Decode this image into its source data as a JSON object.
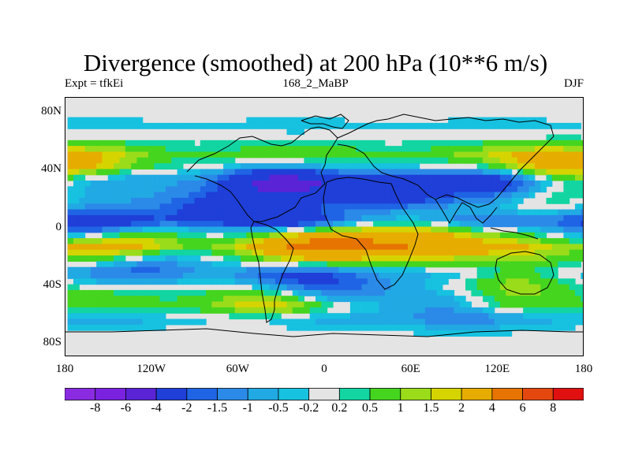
{
  "chart_data": {
    "type": "heatmap",
    "title": "Divergence (smoothed) at 200 hPa (10**6 m/s)",
    "left_label": "Expt = tfkEi",
    "center_label": "168_2_MaBP",
    "right_label": "DJF",
    "xlim": [
      -180,
      180
    ],
    "ylim": [
      -90,
      90
    ],
    "x_ticks": [
      {
        "value": -180,
        "label": "180"
      },
      {
        "value": -120,
        "label": "120W"
      },
      {
        "value": -60,
        "label": "60W"
      },
      {
        "value": 0,
        "label": "0"
      },
      {
        "value": 60,
        "label": "60E"
      },
      {
        "value": 120,
        "label": "120E"
      },
      {
        "value": 180,
        "label": "180"
      }
    ],
    "y_ticks": [
      {
        "value": 80,
        "label": "80N"
      },
      {
        "value": 40,
        "label": "40N"
      },
      {
        "value": 0,
        "label": "0"
      },
      {
        "value": -40,
        "label": "40S"
      },
      {
        "value": -80,
        "label": "80S"
      }
    ],
    "colorbar": {
      "labels": [
        "-8",
        "-6",
        "-4",
        "-2",
        "-1.5",
        "-1",
        "-0.5",
        "-0.2",
        "0.2",
        "0.5",
        "1",
        "1.5",
        "2",
        "4",
        "6",
        "8"
      ],
      "colors": [
        "#8a2be2",
        "#7a22e0",
        "#5a23d6",
        "#1f3fd8",
        "#1f64e4",
        "#2b8ae8",
        "#21a9e4",
        "#17c1e0",
        "#e4e4e4",
        "#12d5a2",
        "#45d51f",
        "#9adc1a",
        "#d6d400",
        "#e6ad00",
        "#e77400",
        "#e4480f",
        "#e01010"
      ]
    },
    "ridge_pattern": [
      {
        "lat": 82,
        "value": 0.0
      },
      {
        "lat": 70,
        "value": -0.4
      },
      {
        "lat": 62,
        "value": 0.0
      },
      {
        "lat": 50,
        "value": 1.2
      },
      {
        "lat": 42,
        "value": 0.5
      },
      {
        "lat": 32,
        "value": -1.4
      },
      {
        "lat": 22,
        "value": -0.8
      },
      {
        "lat": 12,
        "value": -0.6
      },
      {
        "lat": 4,
        "value": -1.8
      },
      {
        "lat": -5,
        "value": 0.6
      },
      {
        "lat": -14,
        "value": 2.2
      },
      {
        "lat": -22,
        "value": 0.8
      },
      {
        "lat": -32,
        "value": -1.2
      },
      {
        "lat": -45,
        "value": 0.5
      },
      {
        "lat": -55,
        "value": 1.0
      },
      {
        "lat": -64,
        "value": -0.8
      },
      {
        "lat": -72,
        "value": -0.2
      },
      {
        "lat": -82,
        "value": 0.0
      }
    ],
    "features": [
      {
        "lon": -30,
        "lat": 30,
        "value": -3.5
      },
      {
        "lon": 45,
        "lat": 25,
        "value": -2.8
      },
      {
        "lon": -80,
        "lat": 12,
        "value": -2.0
      },
      {
        "lon": -160,
        "lat": 0,
        "value": -2.2
      },
      {
        "lon": -120,
        "lat": -22,
        "value": -1.8
      },
      {
        "lon": -20,
        "lat": -40,
        "value": -1.6
      },
      {
        "lon": 20,
        "lat": -45,
        "value": -1.3
      },
      {
        "lon": 85,
        "lat": -55,
        "value": -1.4
      },
      {
        "lon": -20,
        "lat": 5,
        "value": -1.4
      },
      {
        "lon": 150,
        "lat": 42,
        "value": 1.6
      },
      {
        "lon": -175,
        "lat": 42,
        "value": 1.4
      },
      {
        "lon": 60,
        "lat": -10,
        "value": 2.8
      },
      {
        "lon": 0,
        "lat": -12,
        "value": 3.0
      },
      {
        "lon": -135,
        "lat": -12,
        "value": 2.0
      },
      {
        "lon": 130,
        "lat": -35,
        "value": 1.6
      },
      {
        "lon": 150,
        "lat": 20,
        "value": 1.2
      },
      {
        "lon": -40,
        "lat": -52,
        "value": 1.4
      },
      {
        "lon": 120,
        "lat": 30,
        "value": -2.0
      }
    ]
  }
}
